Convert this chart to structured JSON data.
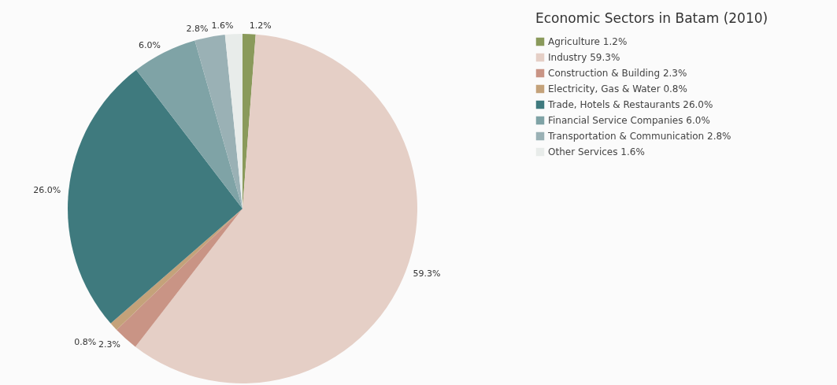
{
  "chart_data": {
    "type": "pie",
    "legend_title": "Economic Sectors in Batam (2010)",
    "categories": [
      "Agriculture",
      "Industry",
      "Construction & Building",
      "Electricity, Gas & Water",
      "Trade, Hotels & Restaurants",
      "Financial Service Companies",
      "Transportation & Communication",
      "Other Services"
    ],
    "values": [
      1.2,
      59.3,
      2.3,
      0.8,
      26.0,
      6.0,
      2.8,
      1.6
    ],
    "value_labels": [
      "1.2%",
      "59.3%",
      "2.3%",
      "0.8%",
      "26.0%",
      "6.0%",
      "2.8%",
      "1.6%"
    ],
    "colors": [
      "#8a9a5b",
      "#e5cfc6",
      "#c99485",
      "#c4a27a",
      "#3f7a7e",
      "#7fa3a6",
      "#9ab1b5",
      "#e8ecea"
    ],
    "legend": "top right"
  }
}
